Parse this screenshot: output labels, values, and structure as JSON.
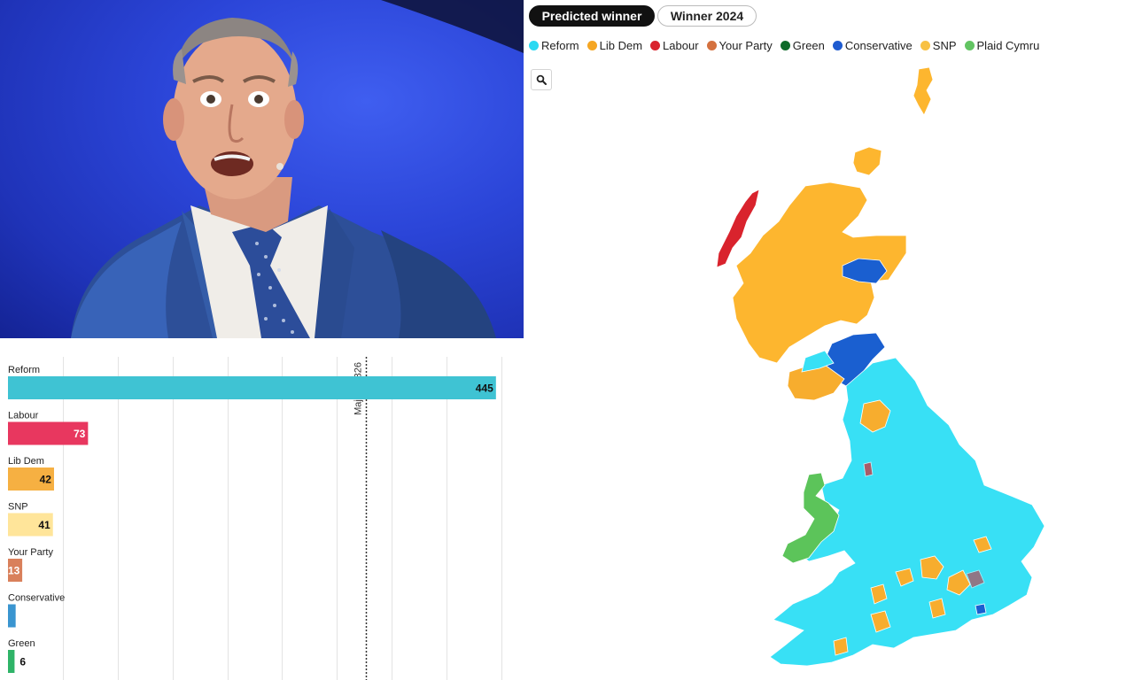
{
  "map": {
    "tabs": [
      {
        "label": "Predicted winner",
        "active": true
      },
      {
        "label": "Winner 2024",
        "active": false
      }
    ],
    "legend": [
      {
        "label": "Reform",
        "color": "#29d9f2"
      },
      {
        "label": "Lib Dem",
        "color": "#f5a623"
      },
      {
        "label": "Labour",
        "color": "#d9232d"
      },
      {
        "label": "Your Party",
        "color": "#d4713f"
      },
      {
        "label": "Green",
        "color": "#0f6b2a"
      },
      {
        "label": "Conservative",
        "color": "#1e5bd0"
      },
      {
        "label": "SNP",
        "color": "#f8c143"
      },
      {
        "label": "Plaid Cymru",
        "color": "#62c462"
      }
    ],
    "zoom_icon": "search-icon",
    "colors": {
      "reform": "#38e0f5",
      "snp": "#fdb62f",
      "libdem": "#f7ad2e",
      "labour": "#d9232d",
      "conservative": "#1a5fd0",
      "plaid": "#5cc45a"
    }
  },
  "chart_data": {
    "type": "bar",
    "orientation": "horizontal",
    "categories": [
      "Reform",
      "Labour",
      "Lib Dem",
      "SNP",
      "Your Party",
      "Conservative",
      "Green"
    ],
    "values": [
      445,
      73,
      42,
      41,
      13,
      7,
      6
    ],
    "colors": [
      "#3fc3d3",
      "#e8375f",
      "#f6b042",
      "#ffe59a",
      "#d9805b",
      "#3a95d0",
      "#2fb468"
    ],
    "value_label_colors": [
      "#111111",
      "#ffffff",
      "#111111",
      "#111111",
      "#ffffff",
      "#ffffff",
      "#111111"
    ],
    "xlim": [
      0,
      450
    ],
    "reference_line": {
      "value": 326,
      "label": "Majority 326"
    },
    "grid": true
  },
  "photo": {
    "subject_icon": "politician-photo"
  }
}
